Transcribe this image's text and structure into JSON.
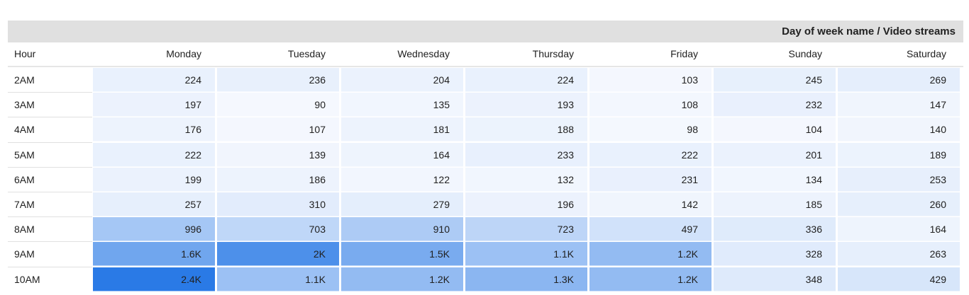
{
  "chart_data": {
    "type": "heatmap",
    "title": "Day of week name / Video streams",
    "row_header": "Hour",
    "columns": [
      "Monday",
      "Tuesday",
      "Wednesday",
      "Thursday",
      "Friday",
      "Sunday",
      "Saturday"
    ],
    "rows": [
      "2AM",
      "3AM",
      "4AM",
      "5AM",
      "6AM",
      "7AM",
      "8AM",
      "9AM",
      "10AM"
    ],
    "values": [
      [
        224,
        236,
        204,
        224,
        103,
        245,
        269
      ],
      [
        197,
        90,
        135,
        193,
        108,
        232,
        147
      ],
      [
        176,
        107,
        181,
        188,
        98,
        104,
        140
      ],
      [
        222,
        139,
        164,
        233,
        222,
        201,
        189
      ],
      [
        199,
        186,
        122,
        132,
        231,
        134,
        253
      ],
      [
        257,
        310,
        279,
        196,
        142,
        185,
        260
      ],
      [
        996,
        703,
        910,
        723,
        497,
        336,
        164
      ],
      [
        1600,
        2000,
        1500,
        1100,
        1200,
        328,
        263
      ],
      [
        2400,
        1100,
        1200,
        1300,
        1200,
        348,
        429
      ]
    ],
    "labels": [
      [
        "224",
        "236",
        "204",
        "224",
        "103",
        "245",
        "269"
      ],
      [
        "197",
        "90",
        "135",
        "193",
        "108",
        "232",
        "147"
      ],
      [
        "176",
        "107",
        "181",
        "188",
        "98",
        "104",
        "140"
      ],
      [
        "222",
        "139",
        "164",
        "233",
        "222",
        "201",
        "189"
      ],
      [
        "199",
        "186",
        "122",
        "132",
        "231",
        "134",
        "253"
      ],
      [
        "257",
        "310",
        "279",
        "196",
        "142",
        "185",
        "260"
      ],
      [
        "996",
        "703",
        "910",
        "723",
        "497",
        "336",
        "164"
      ],
      [
        "1.6K",
        "2K",
        "1.5K",
        "1.1K",
        "1.2K",
        "328",
        "263"
      ],
      [
        "2.4K",
        "1.1K",
        "1.2K",
        "1.3K",
        "1.2K",
        "348",
        "429"
      ]
    ],
    "color_scale": {
      "low": "#f5f8fe",
      "high": "#2a7ae6"
    }
  }
}
